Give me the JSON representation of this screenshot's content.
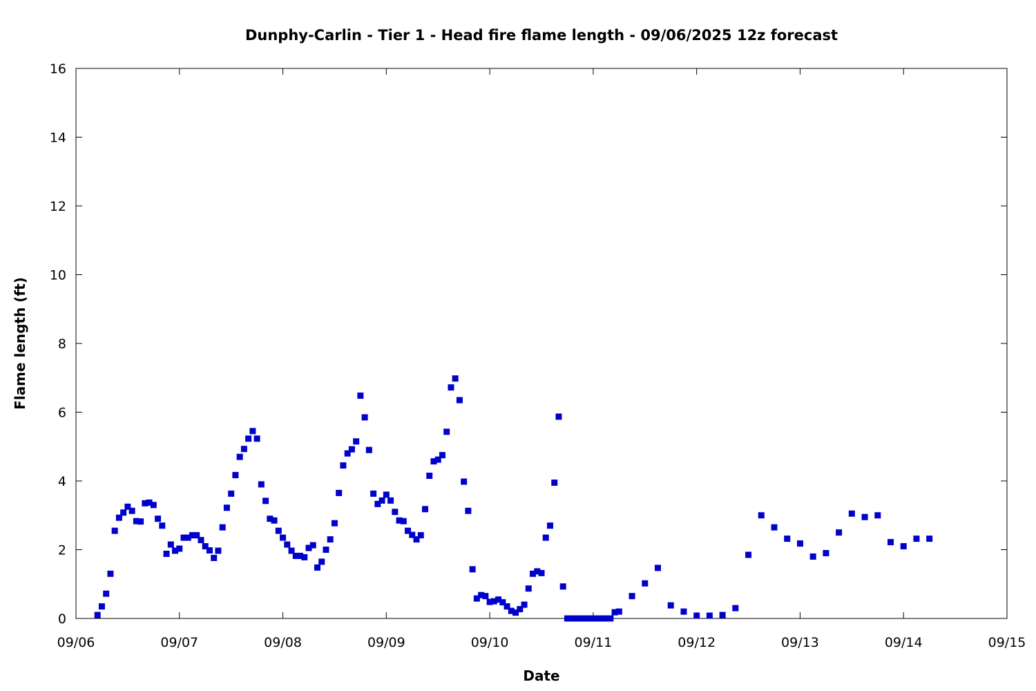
{
  "chart_data": {
    "type": "scatter",
    "title": "Dunphy-Carlin - Tier 1 - Head fire flame length - 09/06/2025 12z forecast",
    "xlabel": "Date",
    "ylabel": "Flame length (ft)",
    "xlim": [
      "2025-09-06T00:00",
      "2025-09-15T00:00"
    ],
    "ylim": [
      0,
      16
    ],
    "xticks": [
      "09/06",
      "09/07",
      "09/08",
      "09/09",
      "09/10",
      "09/11",
      "09/12",
      "09/13",
      "09/14",
      "09/15"
    ],
    "yticks": [
      "0",
      "2",
      "4",
      "6",
      "8",
      "10",
      "12",
      "14",
      "16"
    ],
    "grid": false,
    "color": "#0000cc",
    "points": [
      [
        "2025-09-06T05:00",
        0.1
      ],
      [
        "2025-09-06T06:00",
        0.35
      ],
      [
        "2025-09-06T07:00",
        0.72
      ],
      [
        "2025-09-06T08:00",
        1.3
      ],
      [
        "2025-09-06T09:00",
        2.55
      ],
      [
        "2025-09-06T10:00",
        2.93
      ],
      [
        "2025-09-06T11:00",
        3.08
      ],
      [
        "2025-09-06T12:00",
        3.25
      ],
      [
        "2025-09-06T13:00",
        3.13
      ],
      [
        "2025-09-06T14:00",
        2.83
      ],
      [
        "2025-09-06T15:00",
        2.82
      ],
      [
        "2025-09-06T16:00",
        3.35
      ],
      [
        "2025-09-06T17:00",
        3.37
      ],
      [
        "2025-09-06T18:00",
        3.3
      ],
      [
        "2025-09-06T19:00",
        2.9
      ],
      [
        "2025-09-06T20:00",
        2.7
      ],
      [
        "2025-09-06T21:00",
        1.88
      ],
      [
        "2025-09-06T22:00",
        2.15
      ],
      [
        "2025-09-06T23:00",
        1.97
      ],
      [
        "2025-09-07T00:00",
        2.03
      ],
      [
        "2025-09-07T01:00",
        2.35
      ],
      [
        "2025-09-07T02:00",
        2.35
      ],
      [
        "2025-09-07T03:00",
        2.42
      ],
      [
        "2025-09-07T04:00",
        2.42
      ],
      [
        "2025-09-07T05:00",
        2.28
      ],
      [
        "2025-09-07T06:00",
        2.1
      ],
      [
        "2025-09-07T07:00",
        1.98
      ],
      [
        "2025-09-07T08:00",
        1.76
      ],
      [
        "2025-09-07T09:00",
        1.97
      ],
      [
        "2025-09-07T10:00",
        2.65
      ],
      [
        "2025-09-07T11:00",
        3.22
      ],
      [
        "2025-09-07T12:00",
        3.63
      ],
      [
        "2025-09-07T13:00",
        4.17
      ],
      [
        "2025-09-07T14:00",
        4.7
      ],
      [
        "2025-09-07T15:00",
        4.93
      ],
      [
        "2025-09-07T16:00",
        5.23
      ],
      [
        "2025-09-07T17:00",
        5.45
      ],
      [
        "2025-09-07T18:00",
        5.23
      ],
      [
        "2025-09-07T19:00",
        3.9
      ],
      [
        "2025-09-07T20:00",
        3.42
      ],
      [
        "2025-09-07T21:00",
        2.9
      ],
      [
        "2025-09-07T22:00",
        2.85
      ],
      [
        "2025-09-07T23:00",
        2.55
      ],
      [
        "2025-09-08T00:00",
        2.35
      ],
      [
        "2025-09-08T01:00",
        2.15
      ],
      [
        "2025-09-08T02:00",
        1.97
      ],
      [
        "2025-09-08T03:00",
        1.82
      ],
      [
        "2025-09-08T04:00",
        1.82
      ],
      [
        "2025-09-08T05:00",
        1.78
      ],
      [
        "2025-09-08T06:00",
        2.05
      ],
      [
        "2025-09-08T07:00",
        2.13
      ],
      [
        "2025-09-08T08:00",
        1.48
      ],
      [
        "2025-09-08T09:00",
        1.65
      ],
      [
        "2025-09-08T10:00",
        2.0
      ],
      [
        "2025-09-08T11:00",
        2.3
      ],
      [
        "2025-09-08T12:00",
        2.77
      ],
      [
        "2025-09-08T13:00",
        3.65
      ],
      [
        "2025-09-08T14:00",
        4.45
      ],
      [
        "2025-09-08T15:00",
        4.8
      ],
      [
        "2025-09-08T16:00",
        4.92
      ],
      [
        "2025-09-08T17:00",
        5.15
      ],
      [
        "2025-09-08T18:00",
        6.48
      ],
      [
        "2025-09-08T19:00",
        5.85
      ],
      [
        "2025-09-08T20:00",
        4.9
      ],
      [
        "2025-09-08T21:00",
        3.63
      ],
      [
        "2025-09-08T22:00",
        3.33
      ],
      [
        "2025-09-08T23:00",
        3.43
      ],
      [
        "2025-09-09T00:00",
        3.6
      ],
      [
        "2025-09-09T01:00",
        3.43
      ],
      [
        "2025-09-09T02:00",
        3.1
      ],
      [
        "2025-09-09T03:00",
        2.85
      ],
      [
        "2025-09-09T04:00",
        2.83
      ],
      [
        "2025-09-09T05:00",
        2.55
      ],
      [
        "2025-09-09T06:00",
        2.43
      ],
      [
        "2025-09-09T07:00",
        2.3
      ],
      [
        "2025-09-09T08:00",
        2.42
      ],
      [
        "2025-09-09T09:00",
        3.18
      ],
      [
        "2025-09-09T10:00",
        4.15
      ],
      [
        "2025-09-09T11:00",
        4.57
      ],
      [
        "2025-09-09T12:00",
        4.62
      ],
      [
        "2025-09-09T13:00",
        4.75
      ],
      [
        "2025-09-09T14:00",
        5.43
      ],
      [
        "2025-09-09T15:00",
        6.72
      ],
      [
        "2025-09-09T16:00",
        6.98
      ],
      [
        "2025-09-09T17:00",
        6.35
      ],
      [
        "2025-09-09T18:00",
        3.98
      ],
      [
        "2025-09-09T19:00",
        3.13
      ],
      [
        "2025-09-09T20:00",
        1.43
      ],
      [
        "2025-09-09T21:00",
        0.58
      ],
      [
        "2025-09-09T22:00",
        0.68
      ],
      [
        "2025-09-09T23:00",
        0.65
      ],
      [
        "2025-09-10T00:00",
        0.48
      ],
      [
        "2025-09-10T01:00",
        0.5
      ],
      [
        "2025-09-10T02:00",
        0.55
      ],
      [
        "2025-09-10T03:00",
        0.47
      ],
      [
        "2025-09-10T04:00",
        0.35
      ],
      [
        "2025-09-10T05:00",
        0.22
      ],
      [
        "2025-09-10T06:00",
        0.17
      ],
      [
        "2025-09-10T07:00",
        0.27
      ],
      [
        "2025-09-10T08:00",
        0.4
      ],
      [
        "2025-09-10T09:00",
        0.87
      ],
      [
        "2025-09-10T10:00",
        1.3
      ],
      [
        "2025-09-10T11:00",
        1.37
      ],
      [
        "2025-09-10T12:00",
        1.32
      ],
      [
        "2025-09-10T13:00",
        2.35
      ],
      [
        "2025-09-10T14:00",
        2.7
      ],
      [
        "2025-09-10T15:00",
        3.95
      ],
      [
        "2025-09-10T16:00",
        5.87
      ],
      [
        "2025-09-10T17:00",
        0.93
      ],
      [
        "2025-09-10T18:00",
        0.0
      ],
      [
        "2025-09-10T19:00",
        0.0
      ],
      [
        "2025-09-10T20:00",
        0.0
      ],
      [
        "2025-09-10T21:00",
        0.0
      ],
      [
        "2025-09-10T22:00",
        0.0
      ],
      [
        "2025-09-10T23:00",
        0.0
      ],
      [
        "2025-09-11T00:00",
        0.0
      ],
      [
        "2025-09-11T01:00",
        0.0
      ],
      [
        "2025-09-11T02:00",
        0.0
      ],
      [
        "2025-09-11T03:00",
        0.0
      ],
      [
        "2025-09-11T04:00",
        0.0
      ],
      [
        "2025-09-11T05:00",
        0.18
      ],
      [
        "2025-09-11T06:00",
        0.2
      ],
      [
        "2025-09-11T09:00",
        0.65
      ],
      [
        "2025-09-11T12:00",
        1.02
      ],
      [
        "2025-09-11T15:00",
        1.47
      ],
      [
        "2025-09-11T18:00",
        0.38
      ],
      [
        "2025-09-11T21:00",
        0.2
      ],
      [
        "2025-09-12T00:00",
        0.08
      ],
      [
        "2025-09-12T03:00",
        0.08
      ],
      [
        "2025-09-12T06:00",
        0.1
      ],
      [
        "2025-09-12T09:00",
        0.3
      ],
      [
        "2025-09-12T12:00",
        1.85
      ],
      [
        "2025-09-12T15:00",
        3.0
      ],
      [
        "2025-09-12T18:00",
        2.65
      ],
      [
        "2025-09-12T21:00",
        2.32
      ],
      [
        "2025-09-13T00:00",
        2.18
      ],
      [
        "2025-09-13T03:00",
        1.8
      ],
      [
        "2025-09-13T06:00",
        1.9
      ],
      [
        "2025-09-13T09:00",
        2.5
      ],
      [
        "2025-09-13T12:00",
        3.05
      ],
      [
        "2025-09-13T15:00",
        2.95
      ],
      [
        "2025-09-13T18:00",
        3.0
      ],
      [
        "2025-09-13T21:00",
        2.22
      ],
      [
        "2025-09-14T00:00",
        2.1
      ],
      [
        "2025-09-14T03:00",
        2.32
      ],
      [
        "2025-09-14T06:00",
        2.32
      ]
    ]
  }
}
